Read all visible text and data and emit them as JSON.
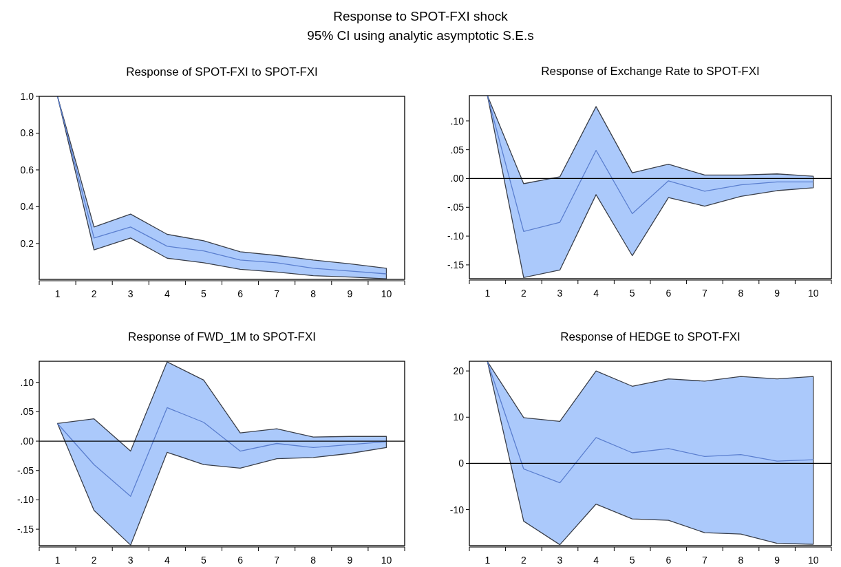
{
  "chart_data": [
    {
      "type": "other",
      "title": "Response to SPOT-FXI shock",
      "subtitle": "95% CI using analytic asymptotic S.E.s"
    },
    {
      "type": "line",
      "title": "Response of SPOT-FXI to SPOT-FXI",
      "categories": [
        "1",
        "2",
        "3",
        "4",
        "5",
        "6",
        "7",
        "8",
        "9",
        "10"
      ],
      "ylim": [
        0.005,
        1.0
      ],
      "yticks": [
        {
          "value": 0.2,
          "label": "0.2"
        },
        {
          "value": 0.4,
          "label": "0.4"
        },
        {
          "value": 0.6,
          "label": "0.6"
        },
        {
          "value": 0.8,
          "label": "0.8"
        },
        {
          "value": 1.0,
          "label": "1.0"
        }
      ],
      "series": [
        {
          "color": "#5b7fcf",
          "values": [
            1.0,
            0.23,
            0.29,
            0.185,
            0.16,
            0.11,
            0.095,
            0.065,
            0.05,
            0.035
          ],
          "upper": [
            1.0,
            0.29,
            0.36,
            0.25,
            0.215,
            0.155,
            0.135,
            0.11,
            0.09,
            0.065
          ],
          "lower": [
            1.0,
            0.165,
            0.23,
            0.12,
            0.095,
            0.06,
            0.045,
            0.025,
            0.018,
            0.008
          ]
        }
      ]
    },
    {
      "type": "line",
      "title": "Response of Exchange Rate to SPOT-FXI",
      "categories": [
        "1",
        "2",
        "3",
        "4",
        "5",
        "6",
        "7",
        "8",
        "9",
        "10"
      ],
      "ylim": [
        -0.174,
        0.144
      ],
      "yticks": [
        {
          "value": -0.15,
          "label": "-.15"
        },
        {
          "value": -0.1,
          "label": "-.10"
        },
        {
          "value": -0.05,
          "label": "-.05"
        },
        {
          "value": 0,
          "label": ".00"
        },
        {
          "value": 0.05,
          "label": ".05"
        },
        {
          "value": 0.1,
          "label": ".10"
        }
      ],
      "ref_lines": [
        {
          "axis": "y",
          "value": 0,
          "color": "#000000"
        }
      ],
      "series": [
        {
          "color": "#5b7fcf",
          "values": [
            0.144,
            -0.092,
            -0.076,
            0.049,
            -0.061,
            -0.004,
            -0.022,
            -0.011,
            -0.006,
            -0.006
          ],
          "upper": [
            0.144,
            -0.009,
            0.003,
            0.125,
            0.01,
            0.025,
            0.006,
            0.006,
            0.008,
            0.004
          ],
          "lower": [
            0.144,
            -0.172,
            -0.159,
            -0.028,
            -0.134,
            -0.033,
            -0.048,
            -0.031,
            -0.021,
            -0.016
          ]
        }
      ]
    },
    {
      "type": "line",
      "title": "Response of FWD_1M to SPOT-FXI",
      "categories": [
        "1",
        "2",
        "3",
        "4",
        "5",
        "6",
        "7",
        "8",
        "9",
        "10"
      ],
      "ylim": [
        -0.178,
        0.136
      ],
      "yticks": [
        {
          "value": -0.15,
          "label": "-.15"
        },
        {
          "value": -0.1,
          "label": "-.10"
        },
        {
          "value": -0.05,
          "label": "-.05"
        },
        {
          "value": 0,
          "label": ".00"
        },
        {
          "value": 0.05,
          "label": ".05"
        },
        {
          "value": 0.1,
          "label": ".10"
        }
      ],
      "ref_lines": [
        {
          "axis": "y",
          "value": 0,
          "color": "#000000"
        }
      ],
      "series": [
        {
          "color": "#5b7fcf",
          "values": [
            0.03,
            -0.04,
            -0.094,
            0.057,
            0.032,
            -0.017,
            -0.004,
            -0.011,
            -0.006,
            -0.001
          ],
          "upper": [
            0.03,
            0.038,
            -0.017,
            0.135,
            0.104,
            0.014,
            0.021,
            0.007,
            0.008,
            0.008
          ],
          "lower": [
            0.03,
            -0.118,
            -0.177,
            -0.019,
            -0.04,
            -0.046,
            -0.03,
            -0.028,
            -0.021,
            -0.011
          ]
        }
      ]
    },
    {
      "type": "line",
      "title": "Response of HEDGE to SPOT-FXI",
      "categories": [
        "1",
        "2",
        "3",
        "4",
        "5",
        "6",
        "7",
        "8",
        "9",
        "10"
      ],
      "ylim": [
        -17.8,
        22.1
      ],
      "yticks": [
        -10,
        0,
        10,
        20
      ],
      "ref_lines": [
        {
          "axis": "y",
          "value": 0,
          "color": "#000000"
        }
      ],
      "series": [
        {
          "color": "#5b7fcf",
          "values": [
            22,
            -1.2,
            -4.2,
            5.6,
            2.3,
            3.2,
            1.5,
            1.9,
            0.5,
            0.8
          ],
          "upper": [
            22,
            9.9,
            9.1,
            20,
            16.7,
            18.3,
            17.8,
            18.8,
            18.3,
            18.8
          ],
          "lower": [
            22,
            -12.5,
            -17.6,
            -8.8,
            -12,
            -12.3,
            -15,
            -15.3,
            -17.3,
            -17.5
          ]
        }
      ]
    }
  ]
}
